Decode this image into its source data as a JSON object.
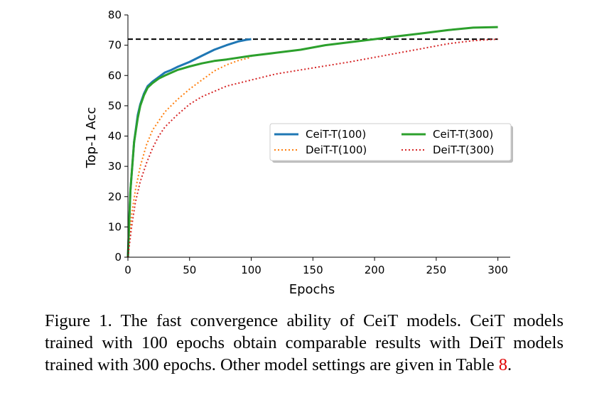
{
  "chart_data": {
    "type": "line",
    "xlabel": "Epochs",
    "ylabel": "Top-1 Acc",
    "xlim": [
      0,
      310
    ],
    "ylim": [
      0,
      80
    ],
    "xticks": [
      0,
      50,
      100,
      150,
      200,
      250,
      300
    ],
    "yticks": [
      0,
      10,
      20,
      30,
      40,
      50,
      60,
      70,
      80
    ],
    "grid": false,
    "legend_position": "center-right",
    "reference_line": {
      "y": 72,
      "style": "dashed",
      "color": "#000000",
      "x_range": [
        0,
        300
      ]
    },
    "series": [
      {
        "name": "CeiT-T(100)",
        "color": "#1f77b4",
        "style": "solid",
        "x": [
          0,
          2,
          5,
          8,
          10,
          13,
          16,
          20,
          25,
          30,
          35,
          40,
          50,
          60,
          70,
          80,
          90,
          96,
          100
        ],
        "y": [
          0,
          22,
          38,
          47,
          50.5,
          54,
          56.5,
          58,
          59.5,
          61,
          61.8,
          62.8,
          64.5,
          66.5,
          68.5,
          70,
          71.3,
          71.8,
          72
        ]
      },
      {
        "name": "DeiT-T(100)",
        "color": "#ff7f0e",
        "style": "dotted",
        "x": [
          0,
          3,
          6,
          10,
          15,
          20,
          25,
          30,
          40,
          50,
          60,
          70,
          80,
          90,
          100
        ],
        "y": [
          0,
          14,
          22,
          30,
          37,
          42,
          45,
          48,
          52,
          55.5,
          58.5,
          61.5,
          63.5,
          65,
          66
        ]
      },
      {
        "name": "CeiT-T(300)",
        "color": "#2ca02c",
        "style": "solid",
        "x": [
          0,
          2,
          5,
          8,
          10,
          13,
          16,
          20,
          25,
          30,
          40,
          50,
          60,
          70,
          80,
          100,
          120,
          140,
          160,
          180,
          200,
          220,
          240,
          260,
          280,
          300
        ],
        "y": [
          0,
          22,
          38,
          46,
          50,
          53.5,
          56,
          57.5,
          59,
          60,
          61.8,
          63,
          64,
          64.8,
          65.3,
          66.5,
          67.5,
          68.5,
          70,
          71,
          72,
          73,
          74,
          75,
          75.8,
          76
        ]
      },
      {
        "name": "DeiT-T(300)",
        "color": "#d62728",
        "style": "dotted",
        "x": [
          0,
          3,
          6,
          10,
          15,
          20,
          25,
          30,
          40,
          50,
          60,
          80,
          100,
          120,
          150,
          180,
          200,
          220,
          240,
          260,
          280,
          300
        ],
        "y": [
          0,
          10,
          18,
          25,
          31,
          36,
          40,
          43,
          47,
          50.5,
          53,
          56.5,
          58.5,
          60.5,
          62.5,
          64.5,
          66,
          67.5,
          69,
          70.5,
          71.5,
          72
        ]
      }
    ]
  },
  "caption": {
    "text": "Figure 1. The fast convergence ability of CeiT models. CeiT models trained with 100 epochs obtain comparable results with DeiT models trained with 300 epochs. Other model settings are given in Table ",
    "ref": "8",
    "end": "."
  }
}
